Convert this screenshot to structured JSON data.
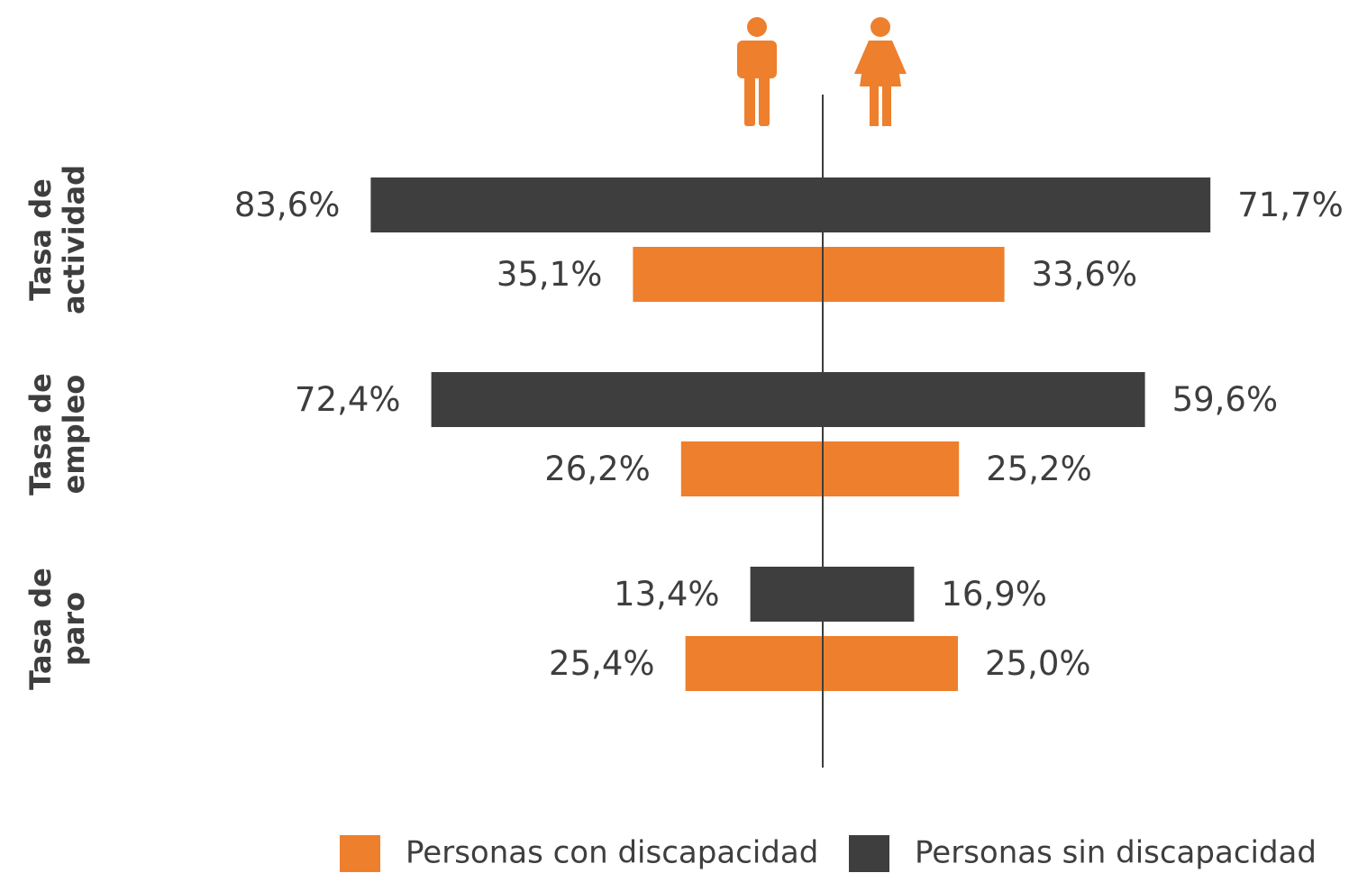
{
  "chart_data": {
    "type": "butterfly",
    "categories": [
      [
        "Tasa de",
        "actividad"
      ],
      [
        "Tasa de",
        "empleo"
      ],
      [
        "Tasa de",
        "paro"
      ]
    ],
    "series": [
      {
        "name": "Personas con discapacidad",
        "color": "#ee7f2d",
        "men": [
          35.1,
          26.2,
          25.4
        ],
        "men_labels": [
          "35,1%",
          "26,2%",
          "25,4%"
        ],
        "women": [
          33.6,
          25.2,
          25.0
        ],
        "women_labels": [
          "33,6%",
          "25,2%",
          "25,0%"
        ]
      },
      {
        "name": "Personas sin discapacidad",
        "color": "#3d3e3d",
        "men": [
          83.6,
          72.4,
          13.4
        ],
        "men_labels": [
          "83,6%",
          "72,4%",
          "13,4%"
        ],
        "women": [
          71.7,
          59.6,
          16.9
        ],
        "women_labels": [
          "71,7%",
          "59,6%",
          "16,9%"
        ]
      }
    ]
  }
}
